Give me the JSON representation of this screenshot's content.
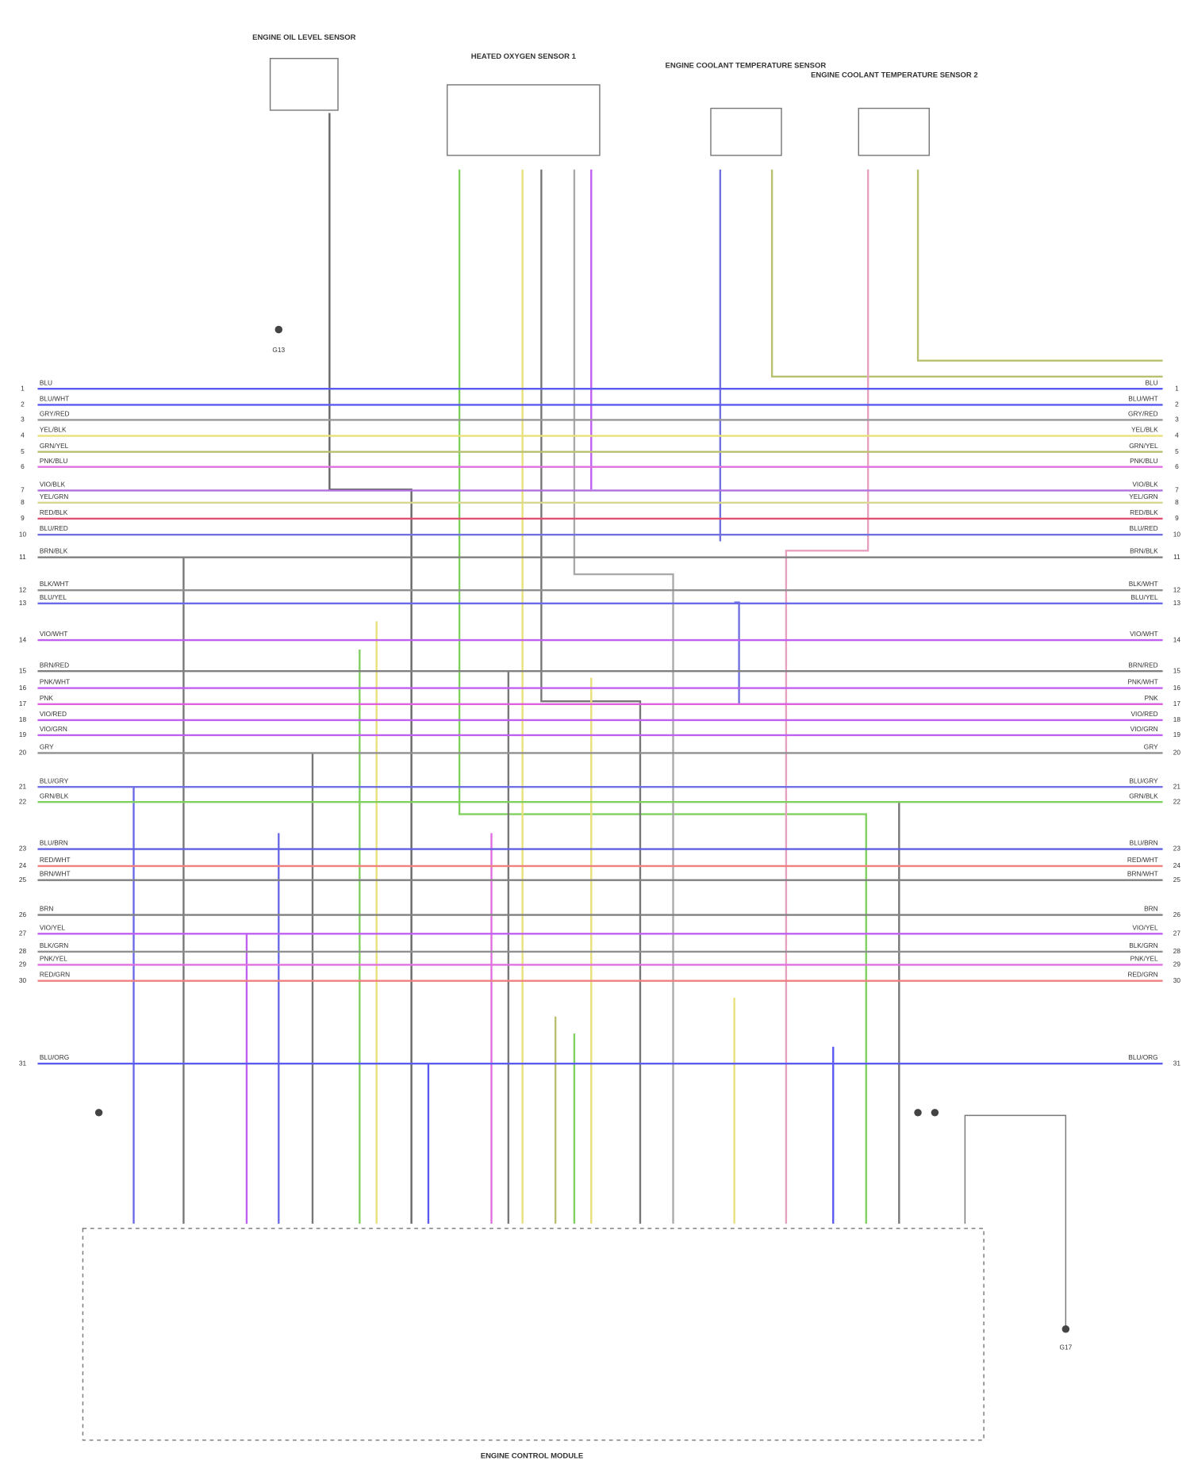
{
  "components": [
    {
      "label": "ENGINE OIL LEVEL SENSOR"
    },
    {
      "label": "HEATED OXYGEN SENSOR 1"
    },
    {
      "label": "ENGINE COOLANT TEMPERATURE SENSOR"
    },
    {
      "label": "ENGINE COOLANT TEMPERATURE SENSOR 2"
    }
  ],
  "grounds": [
    {
      "label": "G13"
    },
    {
      "label": "G17"
    }
  ],
  "module": {
    "label": "ENGINE CONTROL MODULE"
  },
  "wires": [
    {
      "pin": "1",
      "label": "BLU",
      "color": "#5a5af0"
    },
    {
      "pin": "2",
      "label": "BLU/WHT",
      "color": "#5a5af0"
    },
    {
      "pin": "3",
      "label": "GRY/RED",
      "color": "#999"
    },
    {
      "pin": "4",
      "label": "YEL/BLK",
      "color": "#e8e07a"
    },
    {
      "pin": "5",
      "label": "GRN/YEL",
      "color": "#b8c070"
    },
    {
      "pin": "6",
      "label": "PNK/BLU",
      "color": "#e070e0"
    },
    {
      "pin": "7",
      "label": "VIO/BLK",
      "color": "#b070e0"
    },
    {
      "pin": "8",
      "label": "YEL/GRN",
      "color": "#d8d890"
    },
    {
      "pin": "9",
      "label": "RED/BLK",
      "color": "#e05070"
    },
    {
      "pin": "10",
      "label": "BLU/RED",
      "color": "#7070e0"
    },
    {
      "pin": "11",
      "label": "BRN/BLK",
      "color": "#808080"
    },
    {
      "pin": "12",
      "label": "BLK/WHT",
      "color": "#909090"
    },
    {
      "pin": "13",
      "label": "BLU/YEL",
      "color": "#6a6ae8"
    },
    {
      "pin": "14",
      "label": "VIO/WHT",
      "color": "#c060f0"
    },
    {
      "pin": "15",
      "label": "BRN/RED",
      "color": "#808080"
    },
    {
      "pin": "16",
      "label": "PNK/WHT",
      "color": "#c060f0"
    },
    {
      "pin": "17",
      "label": "PNK",
      "color": "#e060e0"
    },
    {
      "pin": "18",
      "label": "VIO/RED",
      "color": "#c060f0"
    },
    {
      "pin": "19",
      "label": "VIO/GRN",
      "color": "#c060f0"
    },
    {
      "pin": "20",
      "label": "GRY",
      "color": "#909090"
    },
    {
      "pin": "21",
      "label": "BLU/GRY",
      "color": "#7070e0"
    },
    {
      "pin": "22",
      "label": "GRN/BLK",
      "color": "#80d060"
    },
    {
      "pin": "23",
      "label": "BLU/BRN",
      "color": "#6060e0"
    },
    {
      "pin": "24",
      "label": "RED/WHT",
      "color": "#f08080"
    },
    {
      "pin": "25",
      "label": "BRN/WHT",
      "color": "#808080"
    },
    {
      "pin": "26",
      "label": "BRN",
      "color": "#808080"
    },
    {
      "pin": "27",
      "label": "VIO/YEL",
      "color": "#c060f0"
    },
    {
      "pin": "28",
      "label": "BLK/GRN",
      "color": "#909090"
    },
    {
      "pin": "29",
      "label": "PNK/YEL",
      "color": "#e070e0"
    },
    {
      "pin": "30",
      "label": "RED/GRN",
      "color": "#f08080"
    },
    {
      "pin": "31",
      "label": "BLU/ORG",
      "color": "#5a5af0"
    }
  ]
}
